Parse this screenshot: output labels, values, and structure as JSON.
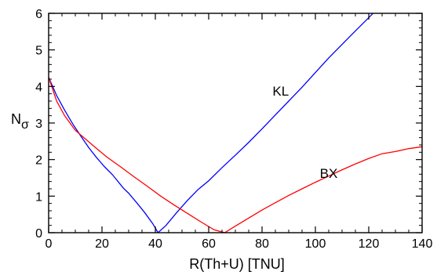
{
  "chart_data": {
    "type": "line",
    "xlabel": "R(Th+U) [TNU]",
    "ylabel": "N",
    "ylabel_subscript": "σ",
    "xlim": [
      0,
      140
    ],
    "ylim": [
      0,
      6
    ],
    "x_ticks": [
      0,
      20,
      40,
      60,
      80,
      100,
      120,
      140
    ],
    "y_ticks": [
      0,
      1,
      2,
      3,
      4,
      5,
      6
    ],
    "grid": false,
    "series": [
      {
        "name": "KL",
        "color": "#0000ff",
        "points": [
          [
            0,
            4.25
          ],
          [
            3,
            3.75
          ],
          [
            6,
            3.35
          ],
          [
            9,
            2.98
          ],
          [
            12,
            2.65
          ],
          [
            15,
            2.33
          ],
          [
            18,
            2.05
          ],
          [
            21,
            1.8
          ],
          [
            24,
            1.58
          ],
          [
            28,
            1.22
          ],
          [
            30,
            1.08
          ],
          [
            33,
            0.82
          ],
          [
            36,
            0.55
          ],
          [
            39,
            0.25
          ],
          [
            41,
            0.0
          ],
          [
            44,
            0.2
          ],
          [
            48,
            0.55
          ],
          [
            52,
            0.88
          ],
          [
            56,
            1.18
          ],
          [
            60,
            1.42
          ],
          [
            65,
            1.78
          ],
          [
            70,
            2.12
          ],
          [
            75,
            2.47
          ],
          [
            80,
            2.84
          ],
          [
            85,
            3.22
          ],
          [
            90,
            3.6
          ],
          [
            95,
            3.98
          ],
          [
            100,
            4.38
          ],
          [
            105,
            4.78
          ],
          [
            110,
            5.15
          ],
          [
            115,
            5.52
          ],
          [
            120,
            5.88
          ],
          [
            124,
            6.18
          ]
        ]
      },
      {
        "name": "BX",
        "color": "#ff0000",
        "points": [
          [
            0,
            4.25
          ],
          [
            3,
            3.6
          ],
          [
            6,
            3.2
          ],
          [
            10,
            2.8
          ],
          [
            14,
            2.55
          ],
          [
            18,
            2.3
          ],
          [
            22,
            2.06
          ],
          [
            27,
            1.8
          ],
          [
            32,
            1.53
          ],
          [
            37,
            1.27
          ],
          [
            42,
            1.0
          ],
          [
            47,
            0.76
          ],
          [
            52,
            0.53
          ],
          [
            57,
            0.3
          ],
          [
            62,
            0.08
          ],
          [
            66,
            0.0
          ],
          [
            70,
            0.18
          ],
          [
            75,
            0.4
          ],
          [
            80,
            0.62
          ],
          [
            85,
            0.82
          ],
          [
            90,
            1.02
          ],
          [
            95,
            1.2
          ],
          [
            100,
            1.38
          ],
          [
            105,
            1.55
          ],
          [
            110,
            1.72
          ],
          [
            115,
            1.88
          ],
          [
            120,
            2.03
          ],
          [
            125,
            2.16
          ],
          [
            130,
            2.22
          ],
          [
            135,
            2.3
          ],
          [
            140,
            2.35
          ]
        ]
      }
    ],
    "annotations": [
      {
        "text": "KL",
        "x": 87,
        "y": 3.75
      },
      {
        "text": "BX",
        "x": 105,
        "y": 1.5
      }
    ]
  }
}
